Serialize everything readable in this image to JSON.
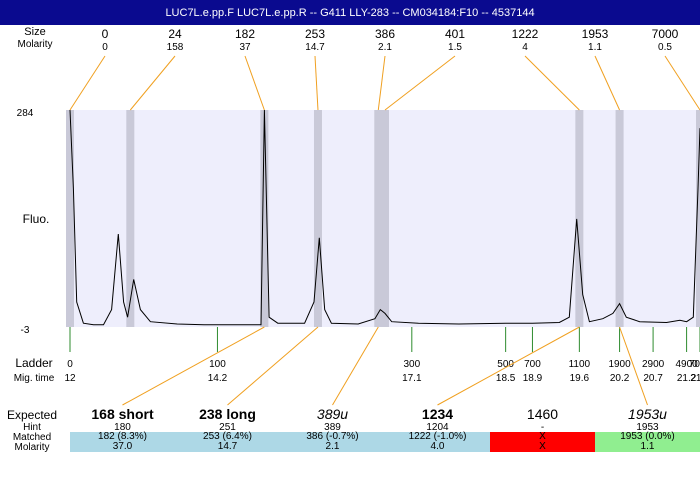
{
  "title": "LUC7L.e.pp.F  LUC7L.e.pp.R -- G411 LLY-283 -- CM034184:F10 -- 4537144",
  "top_labels": {
    "size": "Size",
    "molarity": "Molarity"
  },
  "axis_labels": {
    "y": "Fluo.",
    "ymax": "284",
    "ymin": "-3"
  },
  "ladder_labels": {
    "ladder": "Ladder",
    "migtime": "Mig. time"
  },
  "chart_data": {
    "type": "line",
    "title": "",
    "ylim": [
      -3,
      284
    ],
    "x_unit": "migration time",
    "x_range": [
      12,
      21.4
    ],
    "peaks": [
      {
        "size": "0",
        "molarity": "0"
      },
      {
        "size": "24",
        "molarity": "158"
      },
      {
        "size": "182",
        "molarity": "37"
      },
      {
        "size": "253",
        "molarity": "14.7"
      },
      {
        "size": "386",
        "molarity": "2.1"
      },
      {
        "size": "401",
        "molarity": "1.5"
      },
      {
        "size": "1222",
        "molarity": "4"
      },
      {
        "size": "1953",
        "molarity": "1.1"
      },
      {
        "size": "7000",
        "molarity": "0.5"
      }
    ],
    "peak_times": [
      12.0,
      12.9,
      14.9,
      15.7,
      16.6,
      16.7,
      19.6,
      20.2,
      21.4
    ],
    "ladder": [
      {
        "bp": "0",
        "time": "12",
        "t": 12.0
      },
      {
        "bp": "100",
        "time": "14.2",
        "t": 14.2
      },
      {
        "bp": "300",
        "time": "17.1",
        "t": 17.1
      },
      {
        "bp": "500",
        "time": "18.5",
        "t": 18.5
      },
      {
        "bp": "700",
        "time": "18.9",
        "t": 18.9
      },
      {
        "bp": "1100",
        "time": "19.6",
        "t": 19.6
      },
      {
        "bp": "1900",
        "time": "20.2",
        "t": 20.2
      },
      {
        "bp": "2900",
        "time": "20.7",
        "t": 20.7
      },
      {
        "bp": "4900",
        "time": "21.2",
        "t": 21.2
      },
      {
        "bp": "7000",
        "time": "21.4",
        "t": 21.4
      }
    ],
    "trace": [
      [
        12.0,
        284
      ],
      [
        12.05,
        180
      ],
      [
        12.1,
        30
      ],
      [
        12.2,
        2
      ],
      [
        12.35,
        0
      ],
      [
        12.5,
        0
      ],
      [
        12.62,
        20
      ],
      [
        12.72,
        120
      ],
      [
        12.8,
        30
      ],
      [
        12.86,
        10
      ],
      [
        12.95,
        60
      ],
      [
        13.05,
        20
      ],
      [
        13.2,
        4
      ],
      [
        13.6,
        1
      ],
      [
        14.0,
        0
      ],
      [
        14.6,
        0
      ],
      [
        14.85,
        0
      ],
      [
        14.9,
        284
      ],
      [
        14.97,
        10
      ],
      [
        15.1,
        2
      ],
      [
        15.5,
        2
      ],
      [
        15.64,
        30
      ],
      [
        15.72,
        115
      ],
      [
        15.8,
        20
      ],
      [
        15.9,
        2
      ],
      [
        16.3,
        1
      ],
      [
        16.55,
        8
      ],
      [
        16.63,
        20
      ],
      [
        16.7,
        15
      ],
      [
        16.8,
        4
      ],
      [
        17.2,
        2
      ],
      [
        17.8,
        1
      ],
      [
        18.5,
        2
      ],
      [
        18.9,
        2
      ],
      [
        19.3,
        3
      ],
      [
        19.45,
        10
      ],
      [
        19.56,
        140
      ],
      [
        19.65,
        40
      ],
      [
        19.75,
        4
      ],
      [
        19.95,
        8
      ],
      [
        20.1,
        15
      ],
      [
        20.2,
        28
      ],
      [
        20.3,
        10
      ],
      [
        20.5,
        4
      ],
      [
        20.9,
        3
      ],
      [
        21.1,
        6
      ],
      [
        21.2,
        4
      ],
      [
        21.3,
        10
      ],
      [
        21.37,
        180
      ],
      [
        21.4,
        260
      ]
    ]
  },
  "summary": {
    "row_labels": {
      "expected": "Expected",
      "hint": "Hint",
      "matched": "Matched",
      "molarity": "Molarity"
    },
    "columns": [
      {
        "expected": "168 short",
        "style": "bold",
        "hint": "180",
        "matched": "182 (8.3%)",
        "molarity": "37.0",
        "color": "#add8e6"
      },
      {
        "expected": "238 long",
        "style": "bold",
        "hint": "251",
        "matched": "253 (6.4%)",
        "molarity": "14.7",
        "color": "#add8e6"
      },
      {
        "expected": "389u",
        "style": "italic",
        "hint": "389",
        "matched": "386 (-0.7%)",
        "molarity": "2.1",
        "color": "#add8e6"
      },
      {
        "expected": "1234",
        "style": "bold",
        "hint": "1204",
        "matched": "1222 (-1.0%)",
        "molarity": "4.0",
        "color": "#add8e6"
      },
      {
        "expected": "1460",
        "style": "normal",
        "hint": "-",
        "matched": "X",
        "molarity": "X",
        "color": "#ff0000"
      },
      {
        "expected": "1953u",
        "style": "italic",
        "hint": "1953",
        "matched": "1953 (0.0%)",
        "molarity": "1.1",
        "color": "#90ee90"
      }
    ]
  }
}
